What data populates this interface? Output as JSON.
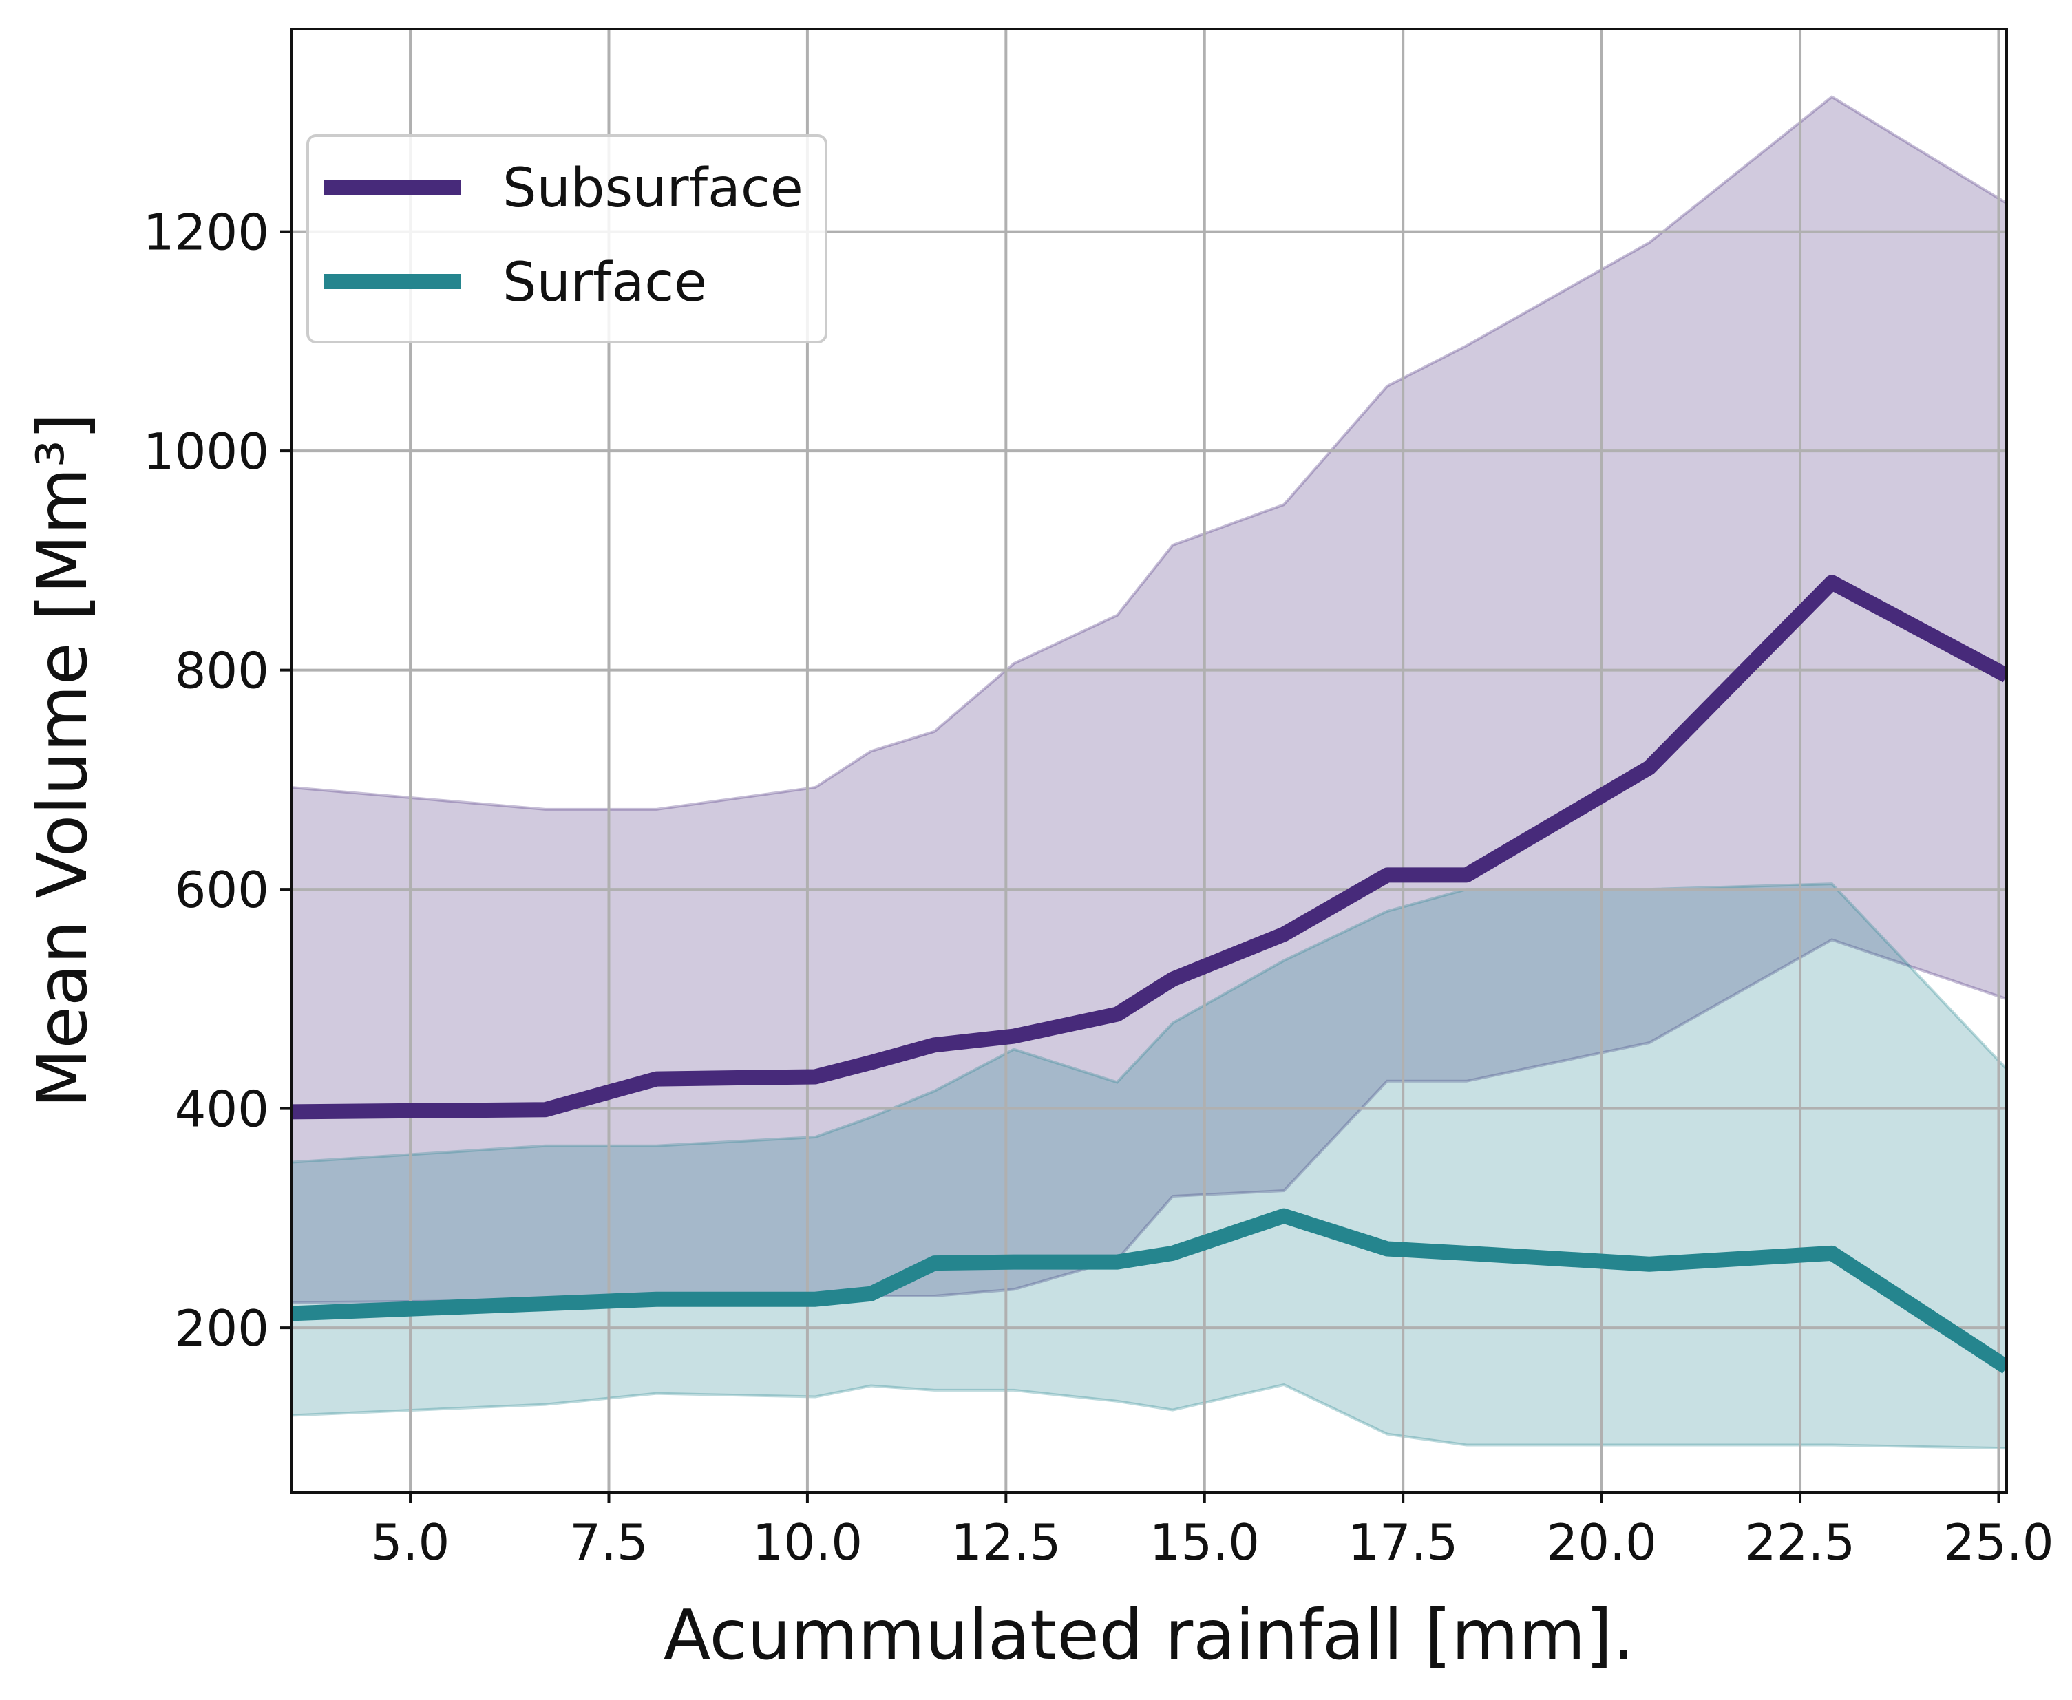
{
  "chart_data": {
    "type": "line",
    "title": "",
    "xlabel": "Acummulated rainfall [mm].",
    "ylabel": "Mean Volume [Mm³]",
    "xlim": [
      3.5,
      25.1
    ],
    "ylim": [
      50,
      1385
    ],
    "xticks": [
      5.0,
      7.5,
      10.0,
      12.5,
      15.0,
      17.5,
      20.0,
      22.5,
      25.0
    ],
    "xtick_labels": [
      "5.0",
      "7.5",
      "10.0",
      "12.5",
      "15.0",
      "17.5",
      "20.0",
      "22.5",
      "25.0"
    ],
    "yticks": [
      200,
      400,
      600,
      800,
      1000,
      1200
    ],
    "ytick_labels": [
      "200",
      "400",
      "600",
      "800",
      "1000",
      "1200"
    ],
    "grid": true,
    "legend_position": "top-left",
    "series": [
      {
        "name": "Subsurface",
        "color": "#472a7a",
        "x": [
          3.5,
          6.7,
          8.1,
          10.1,
          10.8,
          11.6,
          12.6,
          13.9,
          14.6,
          16.0,
          17.3,
          18.3,
          20.6,
          22.9,
          25.1
        ],
        "values": [
          397,
          399,
          427,
          429,
          442,
          458,
          466,
          486,
          518,
          559,
          613,
          613,
          711,
          880,
          795
        ],
        "band_upper": [
          693,
          673,
          673,
          693,
          726,
          744,
          806,
          850,
          914,
          951,
          1059,
          1096,
          1190,
          1323,
          1226
        ],
        "band_lower": [
          223,
          225,
          227,
          227,
          229,
          229,
          235,
          262,
          320,
          325,
          425,
          425,
          460,
          554,
          500
        ]
      },
      {
        "name": "Surface",
        "color": "#25858e",
        "x": [
          3.5,
          6.7,
          8.1,
          10.1,
          10.8,
          11.6,
          12.6,
          13.9,
          14.6,
          16.0,
          17.3,
          18.3,
          20.6,
          22.9,
          25.1
        ],
        "values": [
          213,
          222,
          226,
          226,
          231,
          259,
          260,
          260,
          268,
          302,
          272,
          268,
          258,
          268,
          164
        ],
        "band_upper": [
          351,
          366,
          366,
          374,
          392,
          416,
          454,
          424,
          478,
          535,
          580,
          600,
          600,
          605,
          436
        ],
        "band_lower": [
          120,
          130,
          140,
          137,
          147,
          143,
          143,
          133,
          125,
          148,
          103,
          93,
          93,
          93,
          90
        ]
      }
    ]
  }
}
